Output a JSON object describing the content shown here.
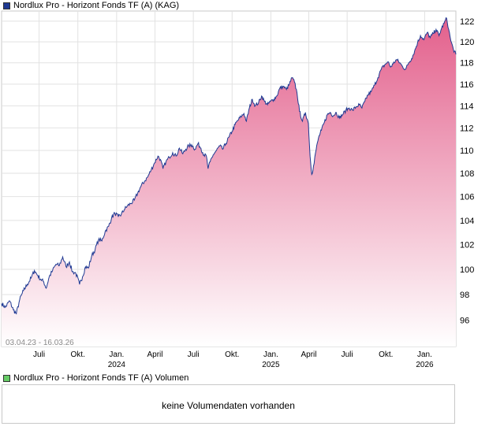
{
  "price_panel": {
    "legend": "Nordlux Pro - Horizont Fonds TF (A) (KAG)",
    "legend_color": "#1f3a93",
    "date_range": "03.04.23 - 16.03.26"
  },
  "volume_panel": {
    "legend": "Nordlux Pro - Horizont Fonds TF (A) Volumen",
    "legend_color": "#66cc66",
    "message": "keine Volumendaten vorhanden"
  },
  "chart_data": {
    "type": "area",
    "title": "Nordlux Pro - Horizont Fonds TF (A) (KAG)",
    "x_range": [
      "2023-04-03",
      "2026-03-16"
    ],
    "y_axis": {
      "ticks": [
        96,
        98,
        100,
        102,
        104,
        106,
        108,
        110,
        112,
        114,
        116,
        118,
        120,
        122
      ],
      "scale": "log",
      "ylim": [
        94,
        123
      ]
    },
    "x_axis": {
      "ticks": [
        {
          "date": "2023-07-01",
          "label": "Juli",
          "year": ""
        },
        {
          "date": "2023-10-01",
          "label": "Okt.",
          "year": ""
        },
        {
          "date": "2024-01-01",
          "label": "Jan.",
          "year": "2024"
        },
        {
          "date": "2024-04-01",
          "label": "April",
          "year": ""
        },
        {
          "date": "2024-07-01",
          "label": "Juli",
          "year": ""
        },
        {
          "date": "2024-10-01",
          "label": "Okt.",
          "year": ""
        },
        {
          "date": "2025-01-01",
          "label": "Jan.",
          "year": "2025"
        },
        {
          "date": "2025-04-01",
          "label": "April",
          "year": ""
        },
        {
          "date": "2025-07-01",
          "label": "Juli",
          "year": ""
        },
        {
          "date": "2025-10-01",
          "label": "Okt.",
          "year": ""
        },
        {
          "date": "2026-01-01",
          "label": "Jan.",
          "year": "2026"
        }
      ]
    },
    "line_color": "#1f3a93",
    "fill_color_top": "#e3608c",
    "fill_color_bottom": "#ffffff",
    "grid": true,
    "series": [
      {
        "points": [
          [
            "2023-04-03",
            97.3
          ],
          [
            "2023-04-12",
            97.0
          ],
          [
            "2023-04-22",
            97.5
          ],
          [
            "2023-05-01",
            96.8
          ],
          [
            "2023-05-08",
            96.5
          ],
          [
            "2023-05-16",
            97.6
          ],
          [
            "2023-05-25",
            98.3
          ],
          [
            "2023-06-03",
            98.8
          ],
          [
            "2023-06-12",
            99.3
          ],
          [
            "2023-06-20",
            99.9
          ],
          [
            "2023-06-28",
            99.5
          ],
          [
            "2023-07-05",
            99.2
          ],
          [
            "2023-07-12",
            99.0
          ],
          [
            "2023-07-18",
            98.5
          ],
          [
            "2023-07-25",
            99.4
          ],
          [
            "2023-08-02",
            99.9
          ],
          [
            "2023-08-10",
            100.4
          ],
          [
            "2023-08-18",
            100.3
          ],
          [
            "2023-08-26",
            101.0
          ],
          [
            "2023-09-03",
            100.2
          ],
          [
            "2023-09-11",
            100.6
          ],
          [
            "2023-09-18",
            99.8
          ],
          [
            "2023-09-26",
            99.7
          ],
          [
            "2023-10-05",
            98.8
          ],
          [
            "2023-10-12",
            99.4
          ],
          [
            "2023-10-19",
            100.2
          ],
          [
            "2023-10-26",
            100.1
          ],
          [
            "2023-11-03",
            101.1
          ],
          [
            "2023-11-11",
            101.6
          ],
          [
            "2023-11-19",
            102.4
          ],
          [
            "2023-11-27",
            102.3
          ],
          [
            "2023-12-05",
            103.1
          ],
          [
            "2023-12-13",
            103.5
          ],
          [
            "2023-12-20",
            104.2
          ],
          [
            "2023-12-28",
            104.6
          ],
          [
            "2024-01-05",
            104.3
          ],
          [
            "2024-01-12",
            104.5
          ],
          [
            "2024-01-19",
            104.9
          ],
          [
            "2024-01-26",
            105.2
          ],
          [
            "2024-02-03",
            105.4
          ],
          [
            "2024-02-12",
            105.7
          ],
          [
            "2024-02-20",
            106.3
          ],
          [
            "2024-02-28",
            106.9
          ],
          [
            "2024-03-07",
            107.3
          ],
          [
            "2024-03-15",
            107.7
          ],
          [
            "2024-03-23",
            108.3
          ],
          [
            "2024-03-31",
            108.9
          ],
          [
            "2024-04-08",
            109.5
          ],
          [
            "2024-04-14",
            109.2
          ],
          [
            "2024-04-20",
            108.4
          ],
          [
            "2024-04-27",
            109.0
          ],
          [
            "2024-05-05",
            109.4
          ],
          [
            "2024-05-13",
            109.8
          ],
          [
            "2024-05-21",
            109.5
          ],
          [
            "2024-05-29",
            110.2
          ],
          [
            "2024-06-06",
            109.7
          ],
          [
            "2024-06-13",
            110.1
          ],
          [
            "2024-06-20",
            110.4
          ],
          [
            "2024-06-27",
            110.5
          ],
          [
            "2024-07-05",
            110.1
          ],
          [
            "2024-07-12",
            110.6
          ],
          [
            "2024-07-19",
            110.2
          ],
          [
            "2024-07-26",
            109.6
          ],
          [
            "2024-08-01",
            109.5
          ],
          [
            "2024-08-05",
            108.4
          ],
          [
            "2024-08-10",
            109.0
          ],
          [
            "2024-08-17",
            109.6
          ],
          [
            "2024-08-25",
            110.0
          ],
          [
            "2024-09-02",
            110.4
          ],
          [
            "2024-09-09",
            110.1
          ],
          [
            "2024-09-16",
            110.6
          ],
          [
            "2024-09-24",
            111.2
          ],
          [
            "2024-10-01",
            111.7
          ],
          [
            "2024-10-08",
            112.3
          ],
          [
            "2024-10-15",
            112.7
          ],
          [
            "2024-10-22",
            113.0
          ],
          [
            "2024-10-29",
            113.3
          ],
          [
            "2024-11-04",
            112.6
          ],
          [
            "2024-11-11",
            113.8
          ],
          [
            "2024-11-18",
            114.6
          ],
          [
            "2024-11-25",
            114.0
          ],
          [
            "2024-12-03",
            114.3
          ],
          [
            "2024-12-10",
            114.9
          ],
          [
            "2024-12-17",
            114.4
          ],
          [
            "2024-12-24",
            114.1
          ],
          [
            "2024-12-31",
            114.4
          ],
          [
            "2025-01-08",
            114.6
          ],
          [
            "2025-01-15",
            114.9
          ],
          [
            "2025-01-22",
            115.6
          ],
          [
            "2025-01-30",
            115.8
          ],
          [
            "2025-02-07",
            115.5
          ],
          [
            "2025-02-14",
            116.0
          ],
          [
            "2025-02-20",
            116.6
          ],
          [
            "2025-02-26",
            116.2
          ],
          [
            "2025-03-04",
            115.2
          ],
          [
            "2025-03-10",
            113.5
          ],
          [
            "2025-03-17",
            112.6
          ],
          [
            "2025-03-24",
            113.4
          ],
          [
            "2025-03-31",
            112.4
          ],
          [
            "2025-04-04",
            109.5
          ],
          [
            "2025-04-08",
            107.9
          ],
          [
            "2025-04-12",
            108.6
          ],
          [
            "2025-04-17",
            109.8
          ],
          [
            "2025-04-24",
            111.1
          ],
          [
            "2025-05-01",
            111.8
          ],
          [
            "2025-05-08",
            112.5
          ],
          [
            "2025-05-15",
            113.2
          ],
          [
            "2025-05-22",
            113.4
          ],
          [
            "2025-05-29",
            113.1
          ],
          [
            "2025-06-05",
            113.4
          ],
          [
            "2025-06-13",
            112.9
          ],
          [
            "2025-06-20",
            113.2
          ],
          [
            "2025-06-28",
            113.6
          ],
          [
            "2025-07-06",
            113.8
          ],
          [
            "2025-07-14",
            113.6
          ],
          [
            "2025-07-22",
            113.9
          ],
          [
            "2025-07-30",
            114.1
          ],
          [
            "2025-08-05",
            113.8
          ],
          [
            "2025-08-12",
            114.4
          ],
          [
            "2025-08-19",
            115.0
          ],
          [
            "2025-08-27",
            115.3
          ],
          [
            "2025-09-04",
            115.9
          ],
          [
            "2025-09-12",
            116.6
          ],
          [
            "2025-09-20",
            117.4
          ],
          [
            "2025-09-28",
            117.8
          ],
          [
            "2025-10-06",
            118.1
          ],
          [
            "2025-10-12",
            117.6
          ],
          [
            "2025-10-18",
            117.9
          ],
          [
            "2025-10-26",
            118.3
          ],
          [
            "2025-11-03",
            118.0
          ],
          [
            "2025-11-10",
            117.6
          ],
          [
            "2025-11-17",
            117.4
          ],
          [
            "2025-11-24",
            118.0
          ],
          [
            "2025-12-01",
            118.4
          ],
          [
            "2025-12-08",
            119.1
          ],
          [
            "2025-12-15",
            119.9
          ],
          [
            "2025-12-22",
            120.6
          ],
          [
            "2025-12-30",
            120.2
          ],
          [
            "2026-01-07",
            120.9
          ],
          [
            "2026-01-14",
            120.4
          ],
          [
            "2026-01-21",
            120.8
          ],
          [
            "2026-01-28",
            121.2
          ],
          [
            "2026-02-04",
            120.6
          ],
          [
            "2026-02-10",
            121.3
          ],
          [
            "2026-02-16",
            121.8
          ],
          [
            "2026-02-22",
            122.3
          ],
          [
            "2026-02-27",
            121.2
          ],
          [
            "2026-03-04",
            120.1
          ],
          [
            "2026-03-10",
            119.3
          ],
          [
            "2026-03-16",
            118.8
          ]
        ]
      }
    ]
  }
}
